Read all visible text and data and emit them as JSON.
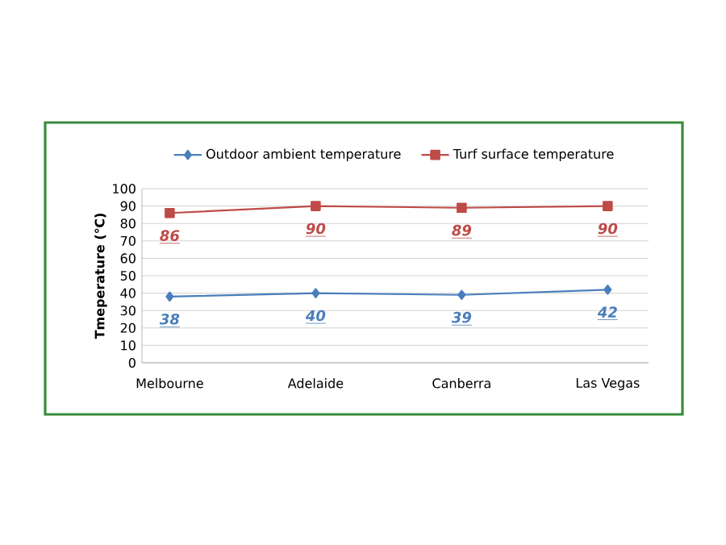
{
  "chart_data": {
    "type": "line",
    "ylabel": "Tmeperature (℃)",
    "categories": [
      "Melbourne",
      "Adelaide",
      "Canberra",
      "Las Vegas"
    ],
    "series": [
      {
        "name": "Outdoor ambient temperature",
        "color": "#4a7ebb",
        "marker": "diamond",
        "values": [
          38,
          40,
          39,
          42
        ]
      },
      {
        "name": "Turf surface temperature",
        "color": "#be4b48",
        "marker": "square",
        "values": [
          86,
          90,
          89,
          90
        ]
      }
    ],
    "ylim": [
      0,
      100
    ],
    "yticks": [
      0,
      10,
      20,
      30,
      40,
      50,
      60,
      70,
      80,
      90,
      100
    ],
    "grid": "y",
    "legend": "top",
    "data_labels": true
  }
}
